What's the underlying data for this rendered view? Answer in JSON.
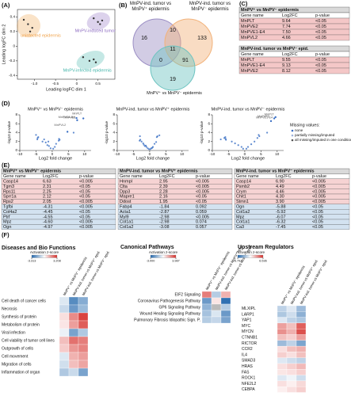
{
  "panels": [
    {
      "label": "(A)",
      "type": "scatter",
      "xlabel": "Leading logFC dim 1",
      "ylabel": "Leading logFC dim 2",
      "xlim": [
        -1.4,
        0.9
      ],
      "ylim": [
        -0.45,
        0.5
      ],
      "xticks": [
        {
          "value": -1,
          "label": "-1.0"
        },
        -0.5,
        0,
        0.5
      ],
      "yticks": [
        -0.4,
        -0.2,
        0,
        0.2,
        0.4
      ],
      "series": [
        {
          "name": "uninfected epidermis",
          "color": "#f0a24a",
          "x": [
            -1.25,
            -1.15,
            -1.05,
            -1.1
          ],
          "y": [
            0.36,
            0.3,
            0.25,
            0.2
          ]
        },
        {
          "name": "MnPV-induced tumor",
          "color": "#8c6bc0",
          "x": [
            0.4,
            0.5,
            0.55,
            0.6
          ],
          "y": [
            0.38,
            0.33,
            0.3,
            0.35
          ]
        },
        {
          "name": "MnPV-infected epidermis",
          "color": "#3fb3a8",
          "x": [
            0.15,
            0.3,
            0.4,
            0.45
          ],
          "y": [
            -0.15,
            -0.2,
            -0.18,
            -0.22
          ]
        }
      ]
    },
    {
      "label": "(B)",
      "type": "venn",
      "sets": [
        {
          "label": "MnPV-ind. tumor vs MnPV⁺ epidermis",
          "color": "#9b8ec4"
        },
        {
          "label": "MnPV-ind. tumor vs MnPV⁻ epidermis",
          "color": "#f2b27a"
        },
        {
          "label": "MnPV⁺ vs MnPV⁻ epidermis",
          "color": "#6cc3c0"
        }
      ],
      "regions": [
        {
          "sets": [
            0
          ],
          "count": 16
        },
        {
          "sets": [
            1
          ],
          "count": 133
        },
        {
          "sets": [
            0,
            1
          ],
          "count": 10
        },
        {
          "sets": [
            0,
            1,
            2
          ],
          "count": 11
        },
        {
          "sets": [
            0,
            2
          ],
          "count": 0
        },
        {
          "sets": [
            1,
            2
          ],
          "count": 91
        },
        {
          "sets": [
            2
          ],
          "count": 19
        }
      ]
    },
    {
      "label": "(C)",
      "type": "tables",
      "tables": [
        {
          "title": "MnPV⁺ vs MnPV⁻ epidermis",
          "columns": [
            "Gene name",
            "Log2FC",
            "p-value"
          ],
          "rows": [
            [
              "MnPLT",
              "9.64",
              "<0.05"
            ],
            [
              "MnPVE2",
              "7.74",
              "<0.05"
            ],
            [
              "MnPVE1-E4",
              "7.50",
              "<0.05"
            ],
            [
              "MnPVL2",
              "4.66",
              "<0.05"
            ]
          ]
        },
        {
          "title": "MnPV-ind. tumor vs MnPV⁻ epid.",
          "columns": [
            "Gene name",
            "Log2FC",
            "p-value"
          ],
          "rows": [
            [
              "MnPLT",
              "9.55",
              "<0.05"
            ],
            [
              "MnPVE1-E4",
              "9.13",
              "<0.05"
            ],
            [
              "MnPVE2",
              "8.12",
              "<0.05"
            ]
          ]
        }
      ]
    },
    {
      "label": "(D)",
      "type": "volcano",
      "xlabel": "Log2 fold change",
      "ylabel": "-log10 p-value",
      "color": "#3a6fc4",
      "plots": [
        {
          "title": "MnPV⁺ vs MnPV⁻ epidermis",
          "xlim": [
            -10,
            12
          ],
          "xticks": [
            -10,
            -5,
            0,
            5,
            10
          ],
          "ylim": [
            0,
            8
          ],
          "yticks": [
            0,
            2,
            4,
            6,
            8
          ],
          "x": [
            -5,
            -4.6,
            -4.5,
            -4.3,
            -3,
            -2.5,
            -2,
            -1.5,
            -1.2,
            -1,
            -0.5,
            0.3,
            0.8,
            1.2,
            2,
            2.1,
            2.3,
            6.6,
            7.5,
            7.7,
            9.6,
            4.7
          ],
          "y": [
            3.5,
            2.5,
            2.8,
            3,
            2,
            2.5,
            1.8,
            1.2,
            2,
            1,
            0.5,
            0.4,
            0.8,
            1.5,
            2.2,
            2.6,
            2.4,
            4,
            7.3,
            6.8,
            7.2,
            4.2
          ],
          "labels": [
            {
              "text": "MnPVE1-E4",
              "x": 7.5,
              "y": 7.3
            },
            {
              "text": "MnPVE2",
              "x": 7.7,
              "y": 6.8
            },
            {
              "text": "MnPLT",
              "x": 9.6,
              "y": 7.2
            },
            {
              "text": "MnPVL2",
              "x": 4.7,
              "y": 4.2
            }
          ]
        },
        {
          "title": "MnPV-ind. tumor vs MnPV⁺ epidermis",
          "xlim": [
            -10,
            12
          ],
          "xticks": [
            -10,
            -5,
            0,
            5,
            10
          ],
          "ylim": [
            0,
            8
          ],
          "yticks": [
            0,
            2,
            4,
            6,
            8
          ],
          "x": [
            -3.1,
            -3,
            -2.9,
            -2.5,
            -2,
            -1.8,
            -1.5,
            -1,
            -0.6,
            -0.2,
            0.2,
            0.5,
            1,
            1.5,
            2,
            2.2,
            2.4,
            3,
            -1.2,
            0.8
          ],
          "y": [
            2.2,
            3.2,
            2.4,
            2,
            1.6,
            1.3,
            1,
            0.8,
            0.5,
            0.3,
            0.3,
            0.5,
            0.8,
            1.5,
            1.9,
            3,
            3.2,
            3.4,
            1.1,
            0.6
          ],
          "labels": []
        },
        {
          "title": "MnPV-ind. tumor vs MnPV⁻ epidermis",
          "xlim": [
            -10,
            12
          ],
          "xticks": [
            -10,
            -5,
            0,
            5,
            10
          ],
          "ylim": [
            0,
            8
          ],
          "yticks": [
            0,
            2,
            4,
            6,
            8
          ],
          "x": [
            -7.4,
            -6.3,
            -6,
            -5.9,
            -5.8,
            -4,
            -3,
            -2,
            -1,
            -0.5,
            0.5,
            1,
            2,
            3,
            3.9,
            4.3,
            4.5,
            6.9,
            9.1,
            8.1,
            9.5
          ],
          "y": [
            2.5,
            2.8,
            3,
            2.6,
            2.4,
            2,
            1.6,
            1.2,
            0.8,
            0.4,
            0.4,
            0.8,
            1.4,
            2,
            2.8,
            3.5,
            3.2,
            4,
            7.2,
            6.6,
            7.5
          ],
          "labels": [
            {
              "text": "MnPVE1-E4",
              "x": 9.1,
              "y": 7.2
            },
            {
              "text": "MnPLT",
              "x": 9.5,
              "y": 7.5
            },
            {
              "text": "MnPVE2",
              "x": 8.1,
              "y": 6.6
            }
          ]
        }
      ],
      "legend": {
        "title": "Missing values:",
        "items": [
          {
            "name": "none",
            "color": "#3a6fc4"
          },
          {
            "name": "partially missing/imputed",
            "color": "#9fb3d9"
          },
          {
            "name": "all missing/imputed in one condition",
            "color": "#555555"
          }
        ]
      }
    },
    {
      "label": "(E)",
      "type": "tables",
      "tables": [
        {
          "title": "MnPV⁺ vs MnPV⁻ epidermis",
          "columns": [
            "Gene name",
            "Log2FC",
            "p-value"
          ],
          "rows": [
            [
              "Casp14",
              "6.63",
              "<0.005"
            ],
            [
              "Tgm3",
              "2.31",
              "<0.05"
            ],
            [
              "Rps11",
              "2.25",
              "<0.05"
            ],
            [
              "Sprr1a",
              "2.12",
              "<0.05"
            ],
            [
              "Rps2",
              "2.05",
              "<0.005"
            ],
            [
              "Tgfbi",
              "-4.31",
              "<0.005"
            ],
            [
              "Col4a2",
              "-4.45",
              "<0.05"
            ],
            [
              "Ptrf",
              "-4.55",
              "<0.05"
            ],
            [
              "Mpz",
              "-4.60",
              "<0.005"
            ],
            [
              "Ogn",
              "-4.97",
              "<0.005"
            ]
          ]
        },
        {
          "title": "MnPV-ind. tumor vs MnPV⁺ epidermis",
          "columns": [
            "Gene name",
            "Log2FC",
            "p-value"
          ],
          "rows": [
            [
              "Hnmpl",
              "2.95",
              "<0.005"
            ],
            [
              "Clta",
              "2.39",
              "<0.005"
            ],
            [
              "Dpp3",
              "2.28",
              "<0.005"
            ],
            [
              "Mapre1",
              "2.16",
              "<0.05"
            ],
            [
              "Ddost",
              "1.95",
              "<0.05"
            ],
            [
              "Fabp4",
              "-1.84",
              "0.092"
            ],
            [
              "Acta1",
              "-2.87",
              "0.059"
            ],
            [
              "Myl9",
              "-2.98",
              "<0.005"
            ],
            [
              "Col1a1",
              "-2.98",
              "0.074"
            ],
            [
              "Col1a2",
              "-3.08",
              "0.057"
            ]
          ]
        },
        {
          "title": "MnPV-ind. tumor vs MnPV⁻ epidermis",
          "columns": [
            "Gene name",
            "Log2FC",
            "p-value"
          ],
          "rows": [
            [
              "Casp14",
              "6.90",
              "<0.005"
            ],
            [
              "Psmb2",
              "4.49",
              "<0.005"
            ],
            [
              "Crym",
              "4.46",
              "<0.005"
            ],
            [
              "Chit1",
              "4.30",
              "<0.005"
            ],
            [
              "Stmn1",
              "3.90",
              "<0.005"
            ],
            [
              "Ogn",
              "-5.88",
              "<0.05"
            ],
            [
              "Col1a2",
              "-5.92",
              "<0.05"
            ],
            [
              "Mpz",
              "-6.07",
              "<0.05"
            ],
            [
              "Col1a1",
              "-6.32",
              "<0.05"
            ],
            [
              "Ca3",
              "-7.45",
              "<0.05"
            ]
          ]
        }
      ]
    },
    {
      "label": "(F)",
      "type": "heatmaps",
      "colorbar_title": "Activation z-score",
      "colors": [
        "#2166ac",
        "#ffffff",
        "#d6302b"
      ],
      "null_color": "#bbbbbb",
      "columns": [
        "MnPV⁺ vs MnPV⁻ epidermis",
        "MnPV-ind. tumor vs MnPV⁺ epid.",
        "MnPV-ind. tumor vs MnPV⁻ epid."
      ],
      "maps": [
        {
          "title": "Diseases and Bio Functions",
          "colorbar_ticks": [
            -3.313,
            3.208
          ],
          "rows": [
            "Cell death of cancer cells",
            "Necrosis",
            "Synthesis of protein",
            "Metabolism of protein",
            "Viral infection",
            "Cell viability of tumor cell lines",
            "Outgrowth of cells",
            "Cell movement",
            "Migration of cells",
            "Inflammation of organ"
          ],
          "values": [
            [
              -0.5,
              -2.5,
              -1.8
            ],
            [
              -0.8,
              -2.2,
              -1.5
            ],
            [
              0.5,
              1.8,
              2.9
            ],
            [
              0.4,
              1.5,
              2.5
            ],
            [
              -0.3,
              -2.0,
              -1.2
            ],
            [
              1.0,
              2.2,
              2.0
            ],
            [
              0.8,
              1.6,
              1.9
            ],
            [
              -0.5,
              1.2,
              1.5
            ],
            [
              -0.7,
              1.0,
              1.4
            ],
            [
              -1.2,
              -0.8,
              -2.0
            ]
          ]
        },
        {
          "title": "Canonical Pathways",
          "colorbar_ticks": [
            {
              "value": -3,
              "label": "-3.000"
            },
            3.987
          ],
          "rows": [
            "EIF2 Signaling",
            "Coronavirus Pathogenesis Pathway",
            "GP6 Signaling Pathway",
            "Wound Healing Signaling Pathway",
            "Pulmonary Fibrosis Idiopathic Sign. P."
          ],
          "values": [
            [
              2.5,
              -1.0,
              1.5
            ],
            [
              -2.0,
              0.5,
              -2.8
            ],
            [
              -1.5,
              null,
              -1.0
            ],
            [
              -1.2,
              -0.5,
              -2.0
            ],
            [
              -1.0,
              -0.8,
              -1.8
            ]
          ]
        },
        {
          "title": "Upstream Regulators",
          "colorbar_ticks": [
            -6.797,
            6.536
          ],
          "rows": [
            "MLXIPL",
            "LARP1",
            "YAP1",
            "MYC",
            "MYCN",
            "CTNNB1",
            "RICTOR",
            "CCR2",
            "IL4",
            "SMAD3",
            "HRAS",
            "FAS",
            "ROCK1",
            "NFE2L2",
            "CEBPA"
          ],
          "values": [
            [
              -2,
              -1,
              -3
            ],
            [
              -2.5,
              -1.5,
              -3.5
            ],
            [
              -1,
              -2,
              -2.5
            ],
            [
              3,
              2,
              5
            ],
            [
              3.5,
              2.5,
              5.5
            ],
            [
              2,
              1.5,
              3
            ],
            [
              -3,
              -2,
              -4
            ],
            [
              1,
              2,
              2.5
            ],
            [
              1.5,
              1,
              2
            ],
            [
              -1,
              -1.5,
              -2
            ],
            [
              1,
              1.5,
              2.2
            ],
            [
              0.8,
              1,
              1.5
            ],
            [
              -1,
              -0.5,
              -1.5
            ],
            [
              1,
              0.5,
              1.2
            ],
            [
              0.5,
              1,
              1.5
            ]
          ]
        }
      ]
    }
  ]
}
